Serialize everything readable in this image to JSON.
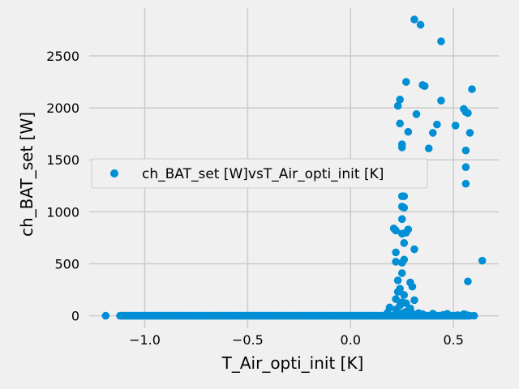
{
  "chart_data": {
    "type": "scatter",
    "xlabel": "T_Air_opti_init [K]",
    "ylabel": "ch_BAT_set [W]",
    "xlim": [
      -1.27,
      0.72
    ],
    "ylim": [
      -120,
      2960
    ],
    "xticks": [
      -1.0,
      -0.5,
      0.0,
      0.5
    ],
    "xtick_labels": [
      "−1.0",
      "−0.5",
      "0.0",
      "0.5"
    ],
    "yticks": [
      0,
      500,
      1000,
      1500,
      2000,
      2500
    ],
    "ytick_labels": [
      "0",
      "500",
      "1000",
      "1500",
      "2000",
      "2500"
    ],
    "grid": true,
    "legend_position": "center-left",
    "series": [
      {
        "name": "ch_BAT_set [W]vsT_Air_opti_init [K]",
        "color": "#008fd5",
        "zero_band": {
          "x_from": -1.12,
          "x_to": 0.58,
          "y": 0
        },
        "points": [
          [
            -1.19,
            0
          ],
          [
            0.6,
            0
          ],
          [
            0.56,
            10
          ],
          [
            0.52,
            5
          ],
          [
            0.45,
            8
          ],
          [
            0.4,
            12
          ],
          [
            0.35,
            15
          ],
          [
            0.3,
            20
          ],
          [
            0.25,
            25
          ],
          [
            0.31,
            2850
          ],
          [
            0.34,
            2800
          ],
          [
            0.44,
            2640
          ],
          [
            0.27,
            2250
          ],
          [
            0.35,
            2220
          ],
          [
            0.36,
            2210
          ],
          [
            0.59,
            2180
          ],
          [
            0.24,
            2080
          ],
          [
            0.44,
            2070
          ],
          [
            0.23,
            2020
          ],
          [
            0.55,
            1990
          ],
          [
            0.56,
            1960
          ],
          [
            0.57,
            1950
          ],
          [
            0.32,
            1940
          ],
          [
            0.24,
            1850
          ],
          [
            0.42,
            1840
          ],
          [
            0.51,
            1830
          ],
          [
            0.28,
            1770
          ],
          [
            0.58,
            1760
          ],
          [
            0.4,
            1760
          ],
          [
            0.25,
            1650
          ],
          [
            0.25,
            1620
          ],
          [
            0.38,
            1610
          ],
          [
            0.56,
            1590
          ],
          [
            0.56,
            1430
          ],
          [
            0.56,
            1270
          ],
          [
            0.25,
            1150
          ],
          [
            0.26,
            1150
          ],
          [
            0.25,
            1050
          ],
          [
            0.26,
            1040
          ],
          [
            0.25,
            930
          ],
          [
            0.21,
            840
          ],
          [
            0.22,
            820
          ],
          [
            0.28,
            830
          ],
          [
            0.27,
            800
          ],
          [
            0.25,
            790
          ],
          [
            0.26,
            700
          ],
          [
            0.31,
            640
          ],
          [
            0.22,
            610
          ],
          [
            0.64,
            530
          ],
          [
            0.26,
            540
          ],
          [
            0.22,
            520
          ],
          [
            0.25,
            510
          ],
          [
            0.25,
            410
          ],
          [
            0.23,
            340
          ],
          [
            0.57,
            330
          ],
          [
            0.29,
            320
          ],
          [
            0.3,
            280
          ],
          [
            0.24,
            260
          ],
          [
            0.23,
            230
          ],
          [
            0.26,
            200
          ],
          [
            0.22,
            160
          ],
          [
            0.31,
            150
          ],
          [
            0.25,
            130
          ],
          [
            0.27,
            120
          ],
          [
            0.24,
            100
          ],
          [
            0.19,
            80
          ],
          [
            0.29,
            70
          ],
          [
            0.22,
            60
          ],
          [
            0.27,
            40
          ],
          [
            0.18,
            30
          ],
          [
            0.33,
            25
          ],
          [
            0.4,
            20
          ],
          [
            0.47,
            18
          ],
          [
            0.55,
            15
          ]
        ]
      }
    ]
  }
}
